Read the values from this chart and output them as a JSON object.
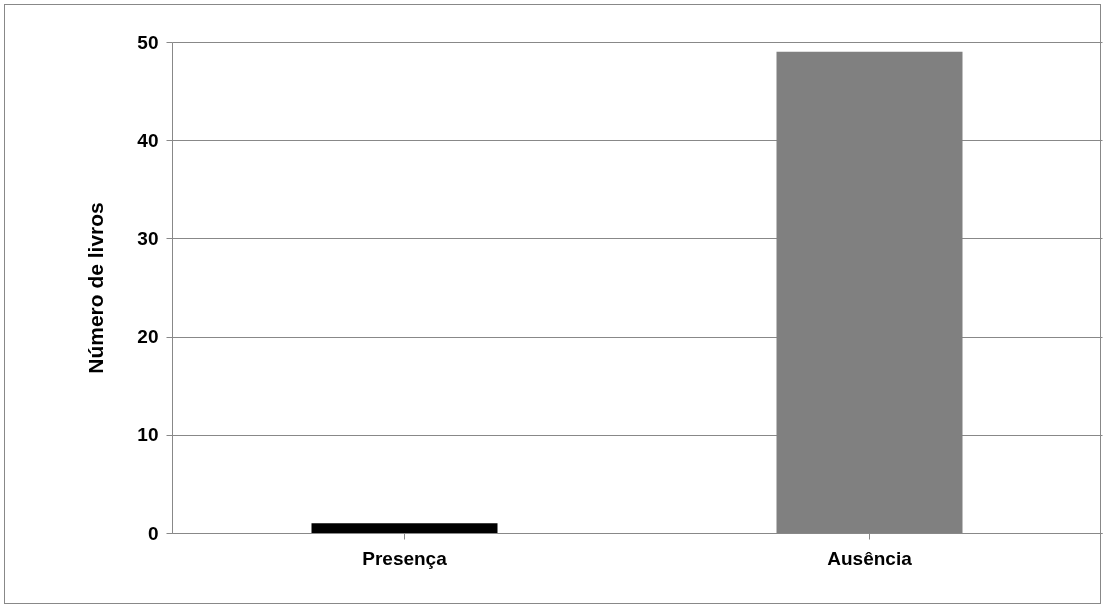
{
  "chart_data": {
    "type": "bar",
    "ylabel": "Número de livros",
    "categories": [
      "Presença",
      "Ausência"
    ],
    "values": [
      1,
      49
    ],
    "colors": [
      "#000000",
      "#808080"
    ],
    "ylim": [
      0,
      50
    ],
    "yticks": [
      0,
      10,
      20,
      30,
      40,
      50
    ],
    "grid": "y",
    "legend": false
  }
}
